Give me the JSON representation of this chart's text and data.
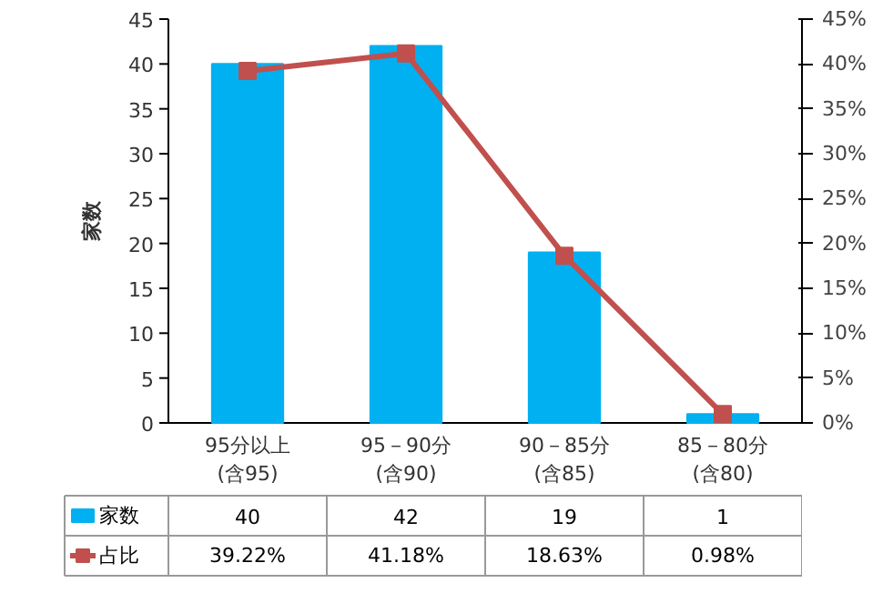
{
  "chart_data": {
    "type": "bar",
    "ylabel": "家数",
    "categories": [
      "95分以上\n(含95)",
      "95－90分\n(含90)",
      "90－85分\n(含85)",
      "85－80分\n(含80)"
    ],
    "series": [
      {
        "name": "家数",
        "color": "#00b0f0",
        "values": [
          40,
          42,
          19,
          1
        ]
      },
      {
        "name": "占比",
        "type": "line",
        "axis": "y2",
        "color": "#c0504d",
        "marker": "square",
        "values": [
          39.22,
          41.18,
          18.63,
          0.98
        ],
        "value_labels": [
          "39.22%",
          "41.18%",
          "18.63%",
          "0.98%"
        ]
      }
    ],
    "ylim": [
      0,
      45
    ],
    "yticks": [
      0,
      5,
      10,
      15,
      20,
      25,
      30,
      35,
      40,
      45
    ],
    "y2lim": [
      0,
      45
    ],
    "y2ticks": [
      {
        "value": 0,
        "label": "0%"
      },
      {
        "value": 5,
        "label": "5%"
      },
      {
        "value": 10,
        "label": "10%"
      },
      {
        "value": 15,
        "label": "15%"
      },
      {
        "value": 20,
        "label": "20%"
      },
      {
        "value": 25,
        "label": "25%"
      },
      {
        "value": 30,
        "label": "30%"
      },
      {
        "value": 35,
        "label": "35%"
      },
      {
        "value": 40,
        "label": "40%"
      },
      {
        "value": 45,
        "label": "45%"
      }
    ],
    "grid": false,
    "legend": "bottom",
    "data_labels": true
  }
}
